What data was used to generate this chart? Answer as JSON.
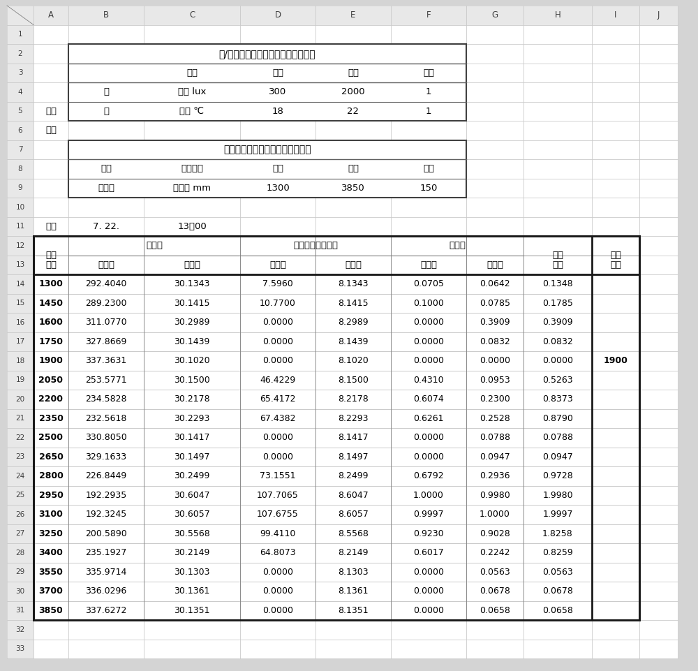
{
  "bg_color": "#d4d4d4",
  "cell_bg": "#ffffff",
  "col_letters": [
    "A",
    "B",
    "C",
    "D",
    "E",
    "F",
    "G",
    "H",
    "I",
    "J"
  ],
  "section1_title": "光/热指标选择、阈值设置、权重分配",
  "section1_headers": [
    "",
    "指标",
    "最小",
    "最大",
    "权重"
  ],
  "section1_row1": [
    "光",
    "照度 lux",
    "300",
    "2000",
    "1"
  ],
  "section1_row2": [
    "热",
    "温度 ℃",
    "18",
    "22",
    "1"
  ],
  "section2_title": "可变构件状态变量设置与取值范围",
  "section2_headers": [
    "构件",
    "状态变量",
    "最小",
    "最大",
    "间隔"
  ],
  "section2_row1": [
    "反光板",
    "距地面 mm",
    "1300",
    "3850",
    "150"
  ],
  "time_label": "时刻",
  "time_date": "7. 22.",
  "time_value": "13：00",
  "params_label1": "参数",
  "params_label2": "预设",
  "main_r12_labels": [
    "构件",
    "原数据",
    "离舒适阈值的距离",
    "去量纲",
    "求和",
    "优选"
  ],
  "main_r13_labels": [
    "状态",
    "光指标",
    "热指标",
    "光指标",
    "热指标",
    "光指标",
    "热指标",
    "求和",
    "优选"
  ],
  "data_rows": [
    [
      "1300",
      "292.4040",
      "30.1343",
      "7.5960",
      "8.1343",
      "0.0705",
      "0.0642",
      "0.1348",
      ""
    ],
    [
      "1450",
      "289.2300",
      "30.1415",
      "10.7700",
      "8.1415",
      "0.1000",
      "0.0785",
      "0.1785",
      ""
    ],
    [
      "1600",
      "311.0770",
      "30.2989",
      "0.0000",
      "8.2989",
      "0.0000",
      "0.3909",
      "0.3909",
      ""
    ],
    [
      "1750",
      "327.8669",
      "30.1439",
      "0.0000",
      "8.1439",
      "0.0000",
      "0.0832",
      "0.0832",
      ""
    ],
    [
      "1900",
      "337.3631",
      "30.1020",
      "0.0000",
      "8.1020",
      "0.0000",
      "0.0000",
      "0.0000",
      "1900"
    ],
    [
      "2050",
      "253.5771",
      "30.1500",
      "46.4229",
      "8.1500",
      "0.4310",
      "0.0953",
      "0.5263",
      ""
    ],
    [
      "2200",
      "234.5828",
      "30.2178",
      "65.4172",
      "8.2178",
      "0.6074",
      "0.2300",
      "0.8373",
      ""
    ],
    [
      "2350",
      "232.5618",
      "30.2293",
      "67.4382",
      "8.2293",
      "0.6261",
      "0.2528",
      "0.8790",
      ""
    ],
    [
      "2500",
      "330.8050",
      "30.1417",
      "0.0000",
      "8.1417",
      "0.0000",
      "0.0788",
      "0.0788",
      ""
    ],
    [
      "2650",
      "329.1633",
      "30.1497",
      "0.0000",
      "8.1497",
      "0.0000",
      "0.0947",
      "0.0947",
      ""
    ],
    [
      "2800",
      "226.8449",
      "30.2499",
      "73.1551",
      "8.2499",
      "0.6792",
      "0.2936",
      "0.9728",
      ""
    ],
    [
      "2950",
      "192.2935",
      "30.6047",
      "107.7065",
      "8.6047",
      "1.0000",
      "0.9980",
      "1.9980",
      ""
    ],
    [
      "3100",
      "192.3245",
      "30.6057",
      "107.6755",
      "8.6057",
      "0.9997",
      "1.0000",
      "1.9997",
      ""
    ],
    [
      "3250",
      "200.5890",
      "30.5568",
      "99.4110",
      "8.5568",
      "0.9230",
      "0.9028",
      "1.8258",
      ""
    ],
    [
      "3400",
      "235.1927",
      "30.2149",
      "64.8073",
      "8.2149",
      "0.6017",
      "0.2242",
      "0.8259",
      ""
    ],
    [
      "3550",
      "335.9714",
      "30.1303",
      "0.0000",
      "8.1303",
      "0.0000",
      "0.0563",
      "0.0563",
      ""
    ],
    [
      "3700",
      "336.0296",
      "30.1361",
      "0.0000",
      "8.1361",
      "0.0000",
      "0.0678",
      "0.0678",
      ""
    ],
    [
      "3850",
      "337.6272",
      "30.1351",
      "0.0000",
      "8.1351",
      "0.0000",
      "0.0658",
      "0.0658",
      ""
    ]
  ],
  "optimal_row_idx": 4,
  "total_rows": 33
}
